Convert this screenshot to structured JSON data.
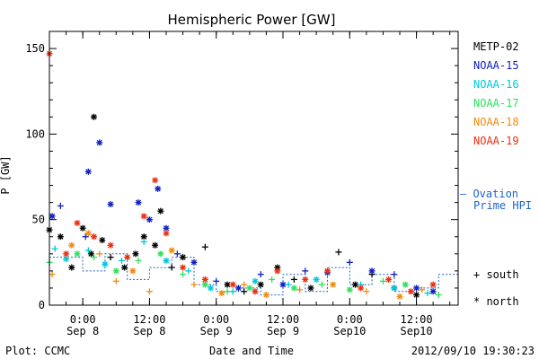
{
  "chart_data": {
    "type": "scatter",
    "title": "Hemispheric Power [GW]",
    "xlabel": "Date and Time",
    "ylabel": "P [GW]",
    "xlim": [
      "2012-09-07 18:00",
      "2012-09-10 19:30"
    ],
    "ylim": [
      0,
      160
    ],
    "yticks": [
      0,
      50,
      100,
      150
    ],
    "xticks": [
      {
        "t": "2012-09-08 00:00",
        "line1": "0:00",
        "line2": "Sep 8"
      },
      {
        "t": "2012-09-08 12:00",
        "line1": "12:00",
        "line2": "Sep 8"
      },
      {
        "t": "2012-09-09 00:00",
        "line1": "0:00",
        "line2": "Sep 9"
      },
      {
        "t": "2012-09-09 12:00",
        "line1": "12:00",
        "line2": "Sep 9"
      },
      {
        "t": "2012-09-10 00:00",
        "line1": "0:00",
        "line2": "Sep10"
      },
      {
        "t": "2012-09-10 12:00",
        "line1": "12:00",
        "line2": "Sep10"
      }
    ],
    "legend_placement": "right",
    "marker_legend": [
      {
        "symbol": "+",
        "label": "south"
      },
      {
        "symbol": "*",
        "label": "north"
      }
    ],
    "series": [
      {
        "name": "METP-02",
        "color": "#000000",
        "values": [
          [
            "2012-09-07 18:00",
            44,
            "*"
          ],
          [
            "2012-09-07 20:00",
            40,
            "*"
          ],
          [
            "2012-09-07 22:00",
            22,
            "*"
          ],
          [
            "2012-09-08 00:00",
            45,
            "*"
          ],
          [
            "2012-09-08 01:30",
            30,
            "*"
          ],
          [
            "2012-09-08 02:00",
            110,
            "*"
          ],
          [
            "2012-09-08 03:30",
            38,
            "*"
          ],
          [
            "2012-09-08 05:00",
            28,
            "+"
          ],
          [
            "2012-09-08 07:30",
            22,
            "*"
          ],
          [
            "2012-09-08 09:30",
            30,
            "*"
          ],
          [
            "2012-09-08 11:00",
            40,
            "*"
          ],
          [
            "2012-09-08 13:00",
            35,
            "*"
          ],
          [
            "2012-09-08 14:00",
            55,
            "*"
          ],
          [
            "2012-09-08 16:00",
            22,
            "+"
          ],
          [
            "2012-09-08 18:00",
            28,
            "*"
          ],
          [
            "2012-09-08 22:00",
            34,
            "+"
          ],
          [
            "2012-09-09 02:00",
            12,
            "*"
          ],
          [
            "2012-09-09 05:00",
            8,
            "+"
          ],
          [
            "2012-09-09 08:00",
            12,
            "*"
          ],
          [
            "2012-09-09 11:00",
            22,
            "*"
          ],
          [
            "2012-09-09 14:00",
            15,
            "+"
          ],
          [
            "2012-09-09 17:00",
            10,
            "*"
          ],
          [
            "2012-09-09 22:00",
            31,
            "+"
          ],
          [
            "2012-09-10 01:00",
            12,
            "*"
          ],
          [
            "2012-09-10 04:00",
            18,
            "+"
          ],
          [
            "2012-09-10 08:00",
            10,
            "*"
          ],
          [
            "2012-09-10 12:00",
            6,
            "*"
          ]
        ]
      },
      {
        "name": "NOAA-15",
        "color": "#1020c0",
        "values": [
          [
            "2012-09-07 18:30",
            52,
            "*"
          ],
          [
            "2012-09-07 20:00",
            58,
            "+"
          ],
          [
            "2012-09-08 00:30",
            40,
            "+"
          ],
          [
            "2012-09-08 01:00",
            78,
            "*"
          ],
          [
            "2012-09-08 03:00",
            95,
            "*"
          ],
          [
            "2012-09-08 05:00",
            59,
            "*"
          ],
          [
            "2012-09-08 10:00",
            60,
            "*"
          ],
          [
            "2012-09-08 12:00",
            50,
            "*"
          ],
          [
            "2012-09-08 13:30",
            68,
            "*"
          ],
          [
            "2012-09-08 15:00",
            45,
            "*"
          ],
          [
            "2012-09-08 17:00",
            30,
            "+"
          ],
          [
            "2012-09-08 20:00",
            25,
            "*"
          ],
          [
            "2012-09-09 00:00",
            14,
            "+"
          ],
          [
            "2012-09-09 04:00",
            10,
            "*"
          ],
          [
            "2012-09-09 08:00",
            18,
            "+"
          ],
          [
            "2012-09-09 12:00",
            12,
            "*"
          ],
          [
            "2012-09-09 16:00",
            20,
            "+"
          ],
          [
            "2012-09-09 20:00",
            19,
            "*"
          ],
          [
            "2012-09-10 00:00",
            25,
            "+"
          ],
          [
            "2012-09-10 04:00",
            20,
            "*"
          ],
          [
            "2012-09-10 08:00",
            18,
            "+"
          ],
          [
            "2012-09-10 12:00",
            10,
            "*"
          ],
          [
            "2012-09-10 15:00",
            8,
            "*"
          ]
        ]
      },
      {
        "name": "NOAA-16",
        "color": "#00c8d8",
        "values": [
          [
            "2012-09-07 19:00",
            33,
            "+"
          ],
          [
            "2012-09-07 21:00",
            27,
            "*"
          ],
          [
            "2012-09-08 01:00",
            32,
            "+"
          ],
          [
            "2012-09-08 04:00",
            24,
            "*"
          ],
          [
            "2012-09-08 07:00",
            26,
            "+"
          ],
          [
            "2012-09-08 11:00",
            37,
            "+"
          ],
          [
            "2012-09-08 15:00",
            26,
            "*"
          ],
          [
            "2012-09-08 19:00",
            20,
            "+"
          ],
          [
            "2012-09-08 23:00",
            10,
            "*"
          ],
          [
            "2012-09-09 03:00",
            8,
            "+"
          ],
          [
            "2012-09-09 07:00",
            14,
            "*"
          ],
          [
            "2012-09-09 13:00",
            12,
            "+"
          ],
          [
            "2012-09-09 18:00",
            15,
            "*"
          ],
          [
            "2012-09-10 02:00",
            12,
            "+"
          ],
          [
            "2012-09-10 08:00",
            10,
            "*"
          ],
          [
            "2012-09-10 14:00",
            7,
            "+"
          ]
        ]
      },
      {
        "name": "NOAA-17",
        "color": "#30e060",
        "values": [
          [
            "2012-09-07 18:00",
            25,
            "+"
          ],
          [
            "2012-09-07 23:00",
            30,
            "*"
          ],
          [
            "2012-09-08 02:00",
            28,
            "+"
          ],
          [
            "2012-09-08 06:00",
            20,
            "*"
          ],
          [
            "2012-09-08 10:00",
            26,
            "+"
          ],
          [
            "2012-09-08 14:00",
            30,
            "*"
          ],
          [
            "2012-09-08 18:00",
            18,
            "+"
          ],
          [
            "2012-09-08 22:00",
            12,
            "*"
          ],
          [
            "2012-09-09 02:00",
            8,
            "+"
          ],
          [
            "2012-09-09 06:00",
            10,
            "*"
          ],
          [
            "2012-09-09 10:00",
            15,
            "+"
          ],
          [
            "2012-09-09 14:00",
            10,
            "*"
          ],
          [
            "2012-09-09 19:00",
            12,
            "+"
          ],
          [
            "2012-09-10 00:00",
            9,
            "*"
          ],
          [
            "2012-09-10 06:00",
            14,
            "+"
          ],
          [
            "2012-09-10 10:00",
            12,
            "*"
          ],
          [
            "2012-09-10 16:00",
            6,
            "+"
          ]
        ]
      },
      {
        "name": "NOAA-18",
        "color": "#f08c10",
        "values": [
          [
            "2012-09-07 18:30",
            18,
            "+"
          ],
          [
            "2012-09-07 22:00",
            35,
            "*"
          ],
          [
            "2012-09-08 01:00",
            42,
            "*"
          ],
          [
            "2012-09-08 03:00",
            30,
            "+"
          ],
          [
            "2012-09-08 06:00",
            14,
            "+"
          ],
          [
            "2012-09-08 09:00",
            20,
            "*"
          ],
          [
            "2012-09-08 12:00",
            8,
            "+"
          ],
          [
            "2012-09-08 16:00",
            32,
            "*"
          ],
          [
            "2012-09-08 20:00",
            12,
            "+"
          ],
          [
            "2012-09-09 01:00",
            7,
            "*"
          ],
          [
            "2012-09-09 05:00",
            12,
            "+"
          ],
          [
            "2012-09-09 09:00",
            6,
            "*"
          ],
          [
            "2012-09-09 15:00",
            9,
            "+"
          ],
          [
            "2012-09-09 21:00",
            12,
            "*"
          ],
          [
            "2012-09-10 03:00",
            8,
            "+"
          ],
          [
            "2012-09-10 09:00",
            5,
            "*"
          ],
          [
            "2012-09-10 13:00",
            9,
            "+"
          ]
        ]
      },
      {
        "name": "NOAA-19",
        "color": "#e83010",
        "values": [
          [
            "2012-09-07 18:00",
            147,
            "*"
          ],
          [
            "2012-09-07 21:00",
            30,
            "*"
          ],
          [
            "2012-09-07 23:00",
            48,
            "*"
          ],
          [
            "2012-09-08 02:00",
            40,
            "*"
          ],
          [
            "2012-09-08 05:00",
            35,
            "*"
          ],
          [
            "2012-09-08 08:00",
            28,
            "*"
          ],
          [
            "2012-09-08 11:00",
            52,
            "*"
          ],
          [
            "2012-09-08 13:00",
            73,
            "*"
          ],
          [
            "2012-09-08 15:00",
            42,
            "*"
          ],
          [
            "2012-09-08 18:00",
            22,
            "*"
          ],
          [
            "2012-09-08 22:00",
            15,
            "*"
          ],
          [
            "2012-09-09 03:00",
            12,
            "*"
          ],
          [
            "2012-09-09 07:00",
            8,
            "*"
          ],
          [
            "2012-09-09 11:00",
            20,
            "*"
          ],
          [
            "2012-09-09 16:00",
            15,
            "*"
          ],
          [
            "2012-09-09 20:00",
            20,
            "*"
          ],
          [
            "2012-09-10 02:00",
            10,
            "*"
          ],
          [
            "2012-09-10 07:00",
            15,
            "*"
          ],
          [
            "2012-09-10 11:00",
            8,
            "*"
          ],
          [
            "2012-09-10 15:00",
            12,
            "*"
          ]
        ]
      }
    ],
    "ovation": {
      "name": "– Ovation Prime HPI",
      "color": "#1a64c8",
      "values": [
        [
          "2012-09-07 18:00",
          28
        ],
        [
          "2012-09-08 00:00",
          20
        ],
        [
          "2012-09-08 04:00",
          30
        ],
        [
          "2012-09-08 08:00",
          15
        ],
        [
          "2012-09-08 12:00",
          22
        ],
        [
          "2012-09-08 16:00",
          28
        ],
        [
          "2012-09-08 20:00",
          12
        ],
        [
          "2012-09-09 00:00",
          8
        ],
        [
          "2012-09-09 04:00",
          10
        ],
        [
          "2012-09-09 08:00",
          6
        ],
        [
          "2012-09-09 12:00",
          18
        ],
        [
          "2012-09-09 16:00",
          8
        ],
        [
          "2012-09-09 20:00",
          22
        ],
        [
          "2012-09-10 00:00",
          12
        ],
        [
          "2012-09-10 04:00",
          18
        ],
        [
          "2012-09-10 08:00",
          8
        ],
        [
          "2012-09-10 12:00",
          10
        ],
        [
          "2012-09-10 16:00",
          18
        ],
        [
          "2012-09-10 19:30",
          6
        ]
      ]
    }
  },
  "footer": {
    "left": "Plot: CCMC",
    "right": "2012/09/10 19:30:23"
  }
}
